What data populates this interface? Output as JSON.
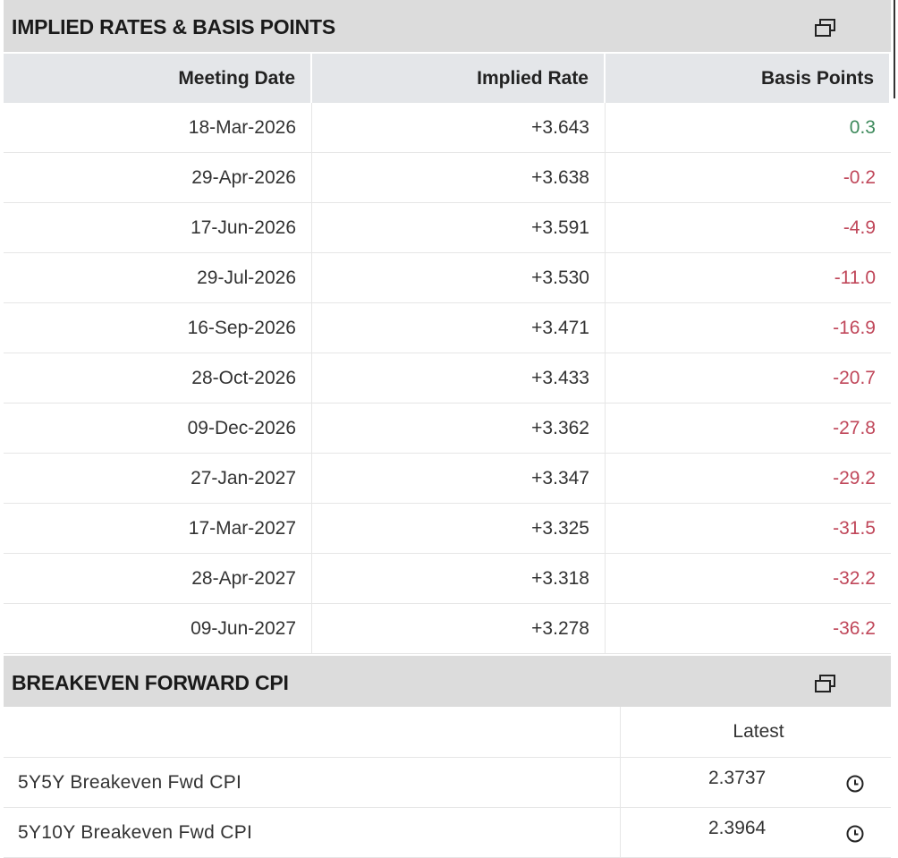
{
  "implied_rates": {
    "title": "IMPLIED RATES & BASIS POINTS",
    "columns": [
      "Meeting Date",
      "Implied Rate",
      "Basis Points"
    ],
    "rows": [
      [
        "18-Mar-2026",
        "+3.643",
        "0.3"
      ],
      [
        "29-Apr-2026",
        "+3.638",
        "-0.2"
      ],
      [
        "17-Jun-2026",
        "+3.591",
        "-4.9"
      ],
      [
        "29-Jul-2026",
        "+3.530",
        "-11.0"
      ],
      [
        "16-Sep-2026",
        "+3.471",
        "-16.9"
      ],
      [
        "28-Oct-2026",
        "+3.433",
        "-20.7"
      ],
      [
        "09-Dec-2026",
        "+3.362",
        "-27.8"
      ],
      [
        "27-Jan-2027",
        "+3.347",
        "-29.2"
      ],
      [
        "17-Mar-2027",
        "+3.325",
        "-31.5"
      ],
      [
        "28-Apr-2027",
        "+3.318",
        "-32.2"
      ],
      [
        "09-Jun-2027",
        "+3.278",
        "-36.2"
      ]
    ]
  },
  "breakeven": {
    "title": "BREAKEVEN FORWARD CPI",
    "columns": [
      "Latest"
    ],
    "rows": [
      [
        "5Y5Y Breakeven Fwd CPI",
        "2.3737"
      ],
      [
        "5Y10Y Breakeven Fwd CPI",
        "2.3964"
      ]
    ]
  }
}
